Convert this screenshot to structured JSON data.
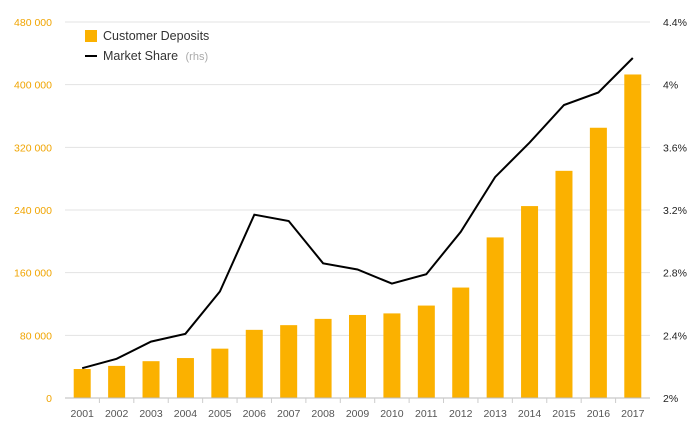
{
  "colors": {
    "bars": "#FBB100",
    "line": "#000000",
    "left_axis_text": "#F0A400",
    "right_axis_text": "#222222",
    "grid": "#e3e3e3"
  },
  "legend": {
    "deposits_label": "Customer Deposits",
    "share_label": "Market Share",
    "share_suffix": "(rhs)",
    "placement": "top-left"
  },
  "chart_data": {
    "type": "bar",
    "categories": [
      "2001",
      "2002",
      "2003",
      "2004",
      "2005",
      "2006",
      "2007",
      "2008",
      "2009",
      "2010",
      "2011",
      "2012",
      "2013",
      "2014",
      "2015",
      "2016",
      "2017"
    ],
    "series": [
      {
        "name": "Customer Deposits",
        "type": "bar",
        "axis": "left",
        "values": [
          37000,
          41000,
          47000,
          51000,
          63000,
          87000,
          93000,
          101000,
          106000,
          108000,
          118000,
          141000,
          205000,
          245000,
          290000,
          345000,
          413000
        ]
      },
      {
        "name": "Market Share",
        "type": "line",
        "axis": "right",
        "values": [
          2.19,
          2.25,
          2.36,
          2.41,
          2.68,
          3.17,
          3.13,
          2.86,
          2.82,
          2.73,
          2.79,
          3.06,
          3.41,
          3.63,
          3.87,
          3.95,
          4.17
        ]
      }
    ],
    "y_left": {
      "lim": [
        0,
        480000
      ],
      "ticks": [
        0,
        80000,
        160000,
        240000,
        320000,
        400000,
        480000
      ],
      "tick_labels": [
        "0",
        "80 000",
        "160 000",
        "240 000",
        "320 000",
        "400 000",
        "480 000"
      ]
    },
    "y_right": {
      "lim": [
        2.0,
        4.4
      ],
      "ticks": [
        2.0,
        2.4,
        2.8,
        3.2,
        3.6,
        4.0,
        4.4
      ],
      "tick_labels": [
        "2%",
        "2.4%",
        "2.8%",
        "3.2%",
        "3.6%",
        "4%",
        "4.4%"
      ]
    },
    "grid": true
  }
}
